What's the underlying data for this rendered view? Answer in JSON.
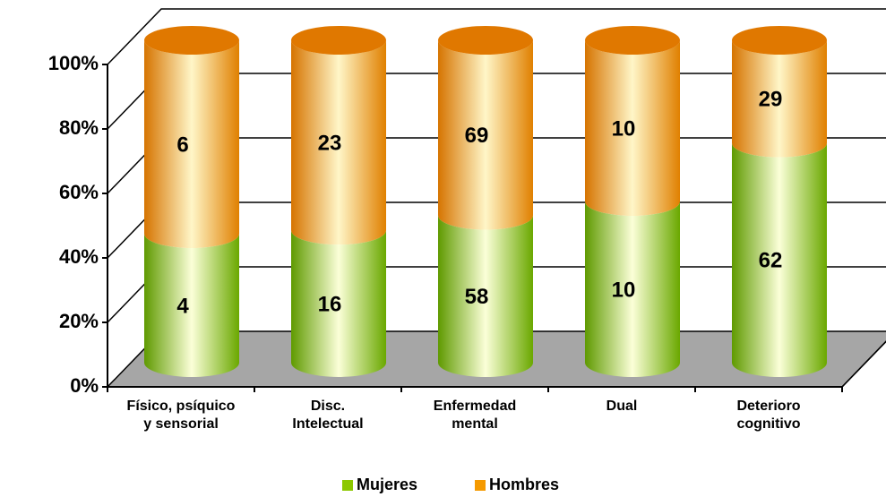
{
  "chart_data": {
    "type": "bar",
    "stacking": "percent",
    "categories": [
      "Físico, psíquico\ny sensorial",
      "Disc.\nIntelectual",
      "Enfermedad\nmental",
      "Dual",
      "Deterioro\ncognitivo"
    ],
    "series": [
      {
        "name": "Mujeres",
        "color": "#8cc800",
        "values": [
          4,
          16,
          58,
          10,
          62
        ]
      },
      {
        "name": "Hombres",
        "color": "#f59a00",
        "values": [
          6,
          23,
          69,
          10,
          29
        ]
      }
    ],
    "ylim": [
      0,
      100
    ],
    "yticks": [
      {
        "value": 0,
        "label": "0%"
      },
      {
        "value": 20,
        "label": "20%"
      },
      {
        "value": 40,
        "label": "40%"
      },
      {
        "value": 60,
        "label": "60%"
      },
      {
        "value": 80,
        "label": "80%"
      },
      {
        "value": 100,
        "label": "100%"
      }
    ],
    "grid": true,
    "legend": "bottom"
  }
}
